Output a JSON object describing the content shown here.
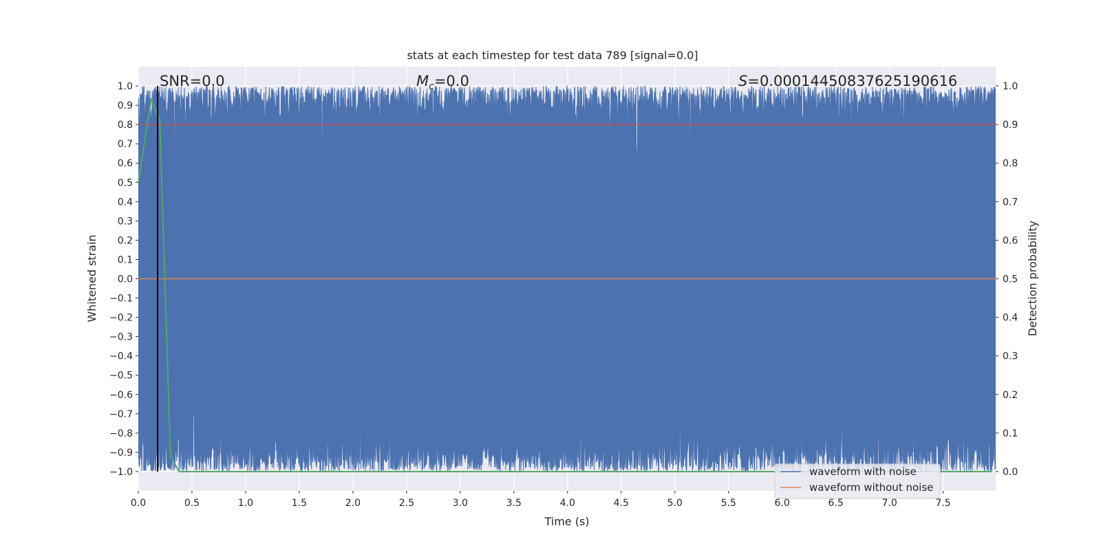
{
  "chart_data": {
    "type": "line",
    "title": "stats at each timestep for test data 789 [signal=0.0]",
    "xlabel": "Time (s)",
    "ylabel": "Whitened strain",
    "y2label": "Detection probability",
    "xlim": [
      0.0,
      7.99
    ],
    "ylim": [
      -1.1,
      1.1
    ],
    "y2lim": [
      -0.05,
      1.05
    ],
    "x_ticks": [
      0.0,
      0.5,
      1.0,
      1.5,
      2.0,
      2.5,
      3.0,
      3.5,
      4.0,
      4.5,
      5.0,
      5.5,
      6.0,
      6.5,
      7.0,
      7.5
    ],
    "x_tick_labels": [
      "0.0",
      "0.5",
      "1.0",
      "1.5",
      "2.0",
      "2.5",
      "3.0",
      "3.5",
      "4.0",
      "4.5",
      "5.0",
      "5.5",
      "6.0",
      "6.5",
      "7.0",
      "7.5"
    ],
    "y_ticks": [
      1.0,
      0.9,
      0.8,
      0.7,
      0.6,
      0.5,
      0.4,
      0.3,
      0.2,
      0.1,
      0.0,
      -0.1,
      -0.2,
      -0.3,
      -0.4,
      -0.5,
      -0.6,
      -0.7,
      -0.8,
      -0.9,
      -1.0
    ],
    "y_tick_labels": [
      "1.0",
      "0.9",
      "0.8",
      "0.7",
      "0.6",
      "0.5",
      "0.4",
      "0.3",
      "0.2",
      "0.1",
      "0.0",
      "−0.1",
      "−0.2",
      "−0.3",
      "−0.4",
      "−0.5",
      "−0.6",
      "−0.7",
      "−0.8",
      "−0.9",
      "−1.0"
    ],
    "y2_ticks": [
      1.0,
      0.9,
      0.8,
      0.7,
      0.6,
      0.5,
      0.4,
      0.3,
      0.2,
      0.1,
      0.0
    ],
    "y2_tick_labels": [
      "1.0",
      "0.9",
      "0.8",
      "0.7",
      "0.6",
      "0.5",
      "0.4",
      "0.3",
      "0.2",
      "0.1",
      "0.0"
    ],
    "grid": true,
    "legend_placement": "lower-right",
    "series": [
      {
        "name": "waveform with noise",
        "axis": "left",
        "color": "#4c72b0",
        "description": "dense noise spanning approximately -1.0 to 1.0 over the full time range"
      },
      {
        "name": "waveform without noise",
        "axis": "left",
        "color": "#dd8452",
        "x": [
          0.0,
          7.99
        ],
        "y": [
          0.0,
          0.0
        ]
      },
      {
        "axis": "right",
        "color": "#55a868",
        "x": [
          0.0,
          0.12,
          0.2,
          0.3,
          0.38,
          0.5,
          7.95
        ],
        "y": [
          0.75,
          0.965,
          0.91,
          0.04,
          0.0,
          0.0,
          0.0
        ]
      },
      {
        "axis": "right",
        "color": "#c44e52",
        "kind": "threshold",
        "y": 0.9
      }
    ],
    "vline": {
      "x": 0.18,
      "color": "#000000"
    },
    "annotations": [
      {
        "label": "SNR=0.0"
      },
      {
        "label_italic": "M",
        "label_sub": "c",
        "label_rest": "=0.0"
      },
      {
        "label_italic": "S",
        "label_rest": "=0.0001445083762519061​6"
      }
    ]
  }
}
